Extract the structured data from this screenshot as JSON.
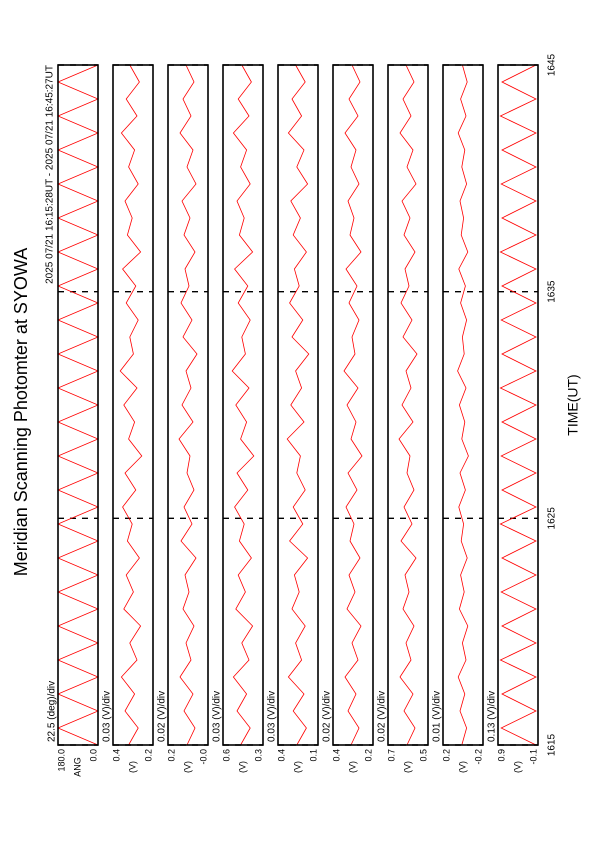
{
  "chart_data": {
    "type": "line",
    "title": "Meridian Scanning Photomter at SYOWA",
    "subtitle": "2025 07/21 16:15:28UT - 2025 07/21 16:45:27UT",
    "xlabel": "TIME(UT)",
    "xlim": [
      1615,
      1645
    ],
    "xticks": [
      1615,
      1625,
      1635,
      1645
    ],
    "grid": true,
    "x": [
      1615,
      1615.75,
      1616.5,
      1617.25,
      1618,
      1618.75,
      1619.5,
      1620.25,
      1621,
      1621.75,
      1622.5,
      1623.25,
      1624,
      1624.75,
      1625.5,
      1626.25,
      1627,
      1627.75,
      1628.5,
      1629.25,
      1630,
      1630.75,
      1631.5,
      1632.25,
      1633,
      1633.75,
      1634.5,
      1635.25,
      1636,
      1636.75,
      1637.5,
      1638.25,
      1639,
      1639.75,
      1640.5,
      1641.25,
      1642,
      1642.75,
      1643.5,
      1644.25,
      1645
    ],
    "panels": [
      {
        "label": "ANG",
        "scale": "22.5 (deg)/div",
        "ylim": [
          0,
          180
        ],
        "yticks": [
          {
            "value": 180,
            "label": "180.0"
          },
          {
            "value": 0,
            "label": "0.0"
          }
        ],
        "color": "#ff0000",
        "values": [
          0,
          180,
          0,
          180,
          0,
          180,
          0,
          180,
          0,
          180,
          0,
          180,
          0,
          180,
          0,
          180,
          0,
          180,
          0,
          180,
          0,
          180,
          0,
          180,
          0,
          180,
          0,
          180,
          0,
          180,
          0,
          180,
          0,
          180,
          0,
          180,
          0,
          180,
          0,
          180,
          0
        ]
      },
      {
        "label": "(V)",
        "scale": "0.03 (V)/div",
        "ylim": [
          0.2,
          0.4
        ],
        "yticks": [
          0.4,
          0.2
        ],
        "color": "#ff0000",
        "values": [
          0.322,
          0.274,
          0.34,
          0.292,
          0.358,
          0.28,
          0.316,
          0.262,
          0.346,
          0.298,
          0.334,
          0.268,
          0.328,
          0.304,
          0.352,
          0.286,
          0.34,
          0.256,
          0.322,
          0.292,
          0.346,
          0.28,
          0.364,
          0.298,
          0.316,
          0.274,
          0.334,
          0.286,
          0.352,
          0.262,
          0.328,
          0.304,
          0.34,
          0.274,
          0.322,
          0.292,
          0.358,
          0.28,
          0.334,
          0.268,
          0.316
        ]
      },
      {
        "label": "(V)",
        "scale": "0.02 (V)/div",
        "ylim": [
          0,
          0.2
        ],
        "yticks": [
          0.2,
          {
            "value": 0,
            "label": "-0.0"
          }
        ],
        "color": "#ff0000",
        "values": [
          0.105,
          0.065,
          0.12,
          0.075,
          0.14,
          0.085,
          0.11,
          0.07,
          0.125,
          0.095,
          0.115,
          0.06,
          0.135,
          0.08,
          0.12,
          0.07,
          0.105,
          0.09,
          0.145,
          0.075,
          0.13,
          0.085,
          0.11,
          0.055,
          0.125,
          0.08,
          0.135,
          0.095,
          0.115,
          0.065,
          0.12,
          0.09,
          0.13,
          0.06,
          0.105,
          0.075,
          0.14,
          0.085,
          0.125,
          0.07,
          0.11
        ]
      },
      {
        "label": "(V)",
        "scale": "0.03 (V)/div",
        "ylim": [
          0.3,
          0.6
        ],
        "yticks": [
          0.6,
          0.3
        ],
        "color": "#ff0000",
        "values": [
          0.468,
          0.396,
          0.495,
          0.423,
          0.522,
          0.405,
          0.459,
          0.378,
          0.504,
          0.432,
          0.486,
          0.387,
          0.477,
          0.441,
          0.513,
          0.414,
          0.495,
          0.369,
          0.468,
          0.423,
          0.504,
          0.405,
          0.531,
          0.432,
          0.459,
          0.396,
          0.486,
          0.414,
          0.513,
          0.378,
          0.477,
          0.441,
          0.495,
          0.396,
          0.468,
          0.423,
          0.522,
          0.405,
          0.486,
          0.387,
          0.459
        ]
      },
      {
        "label": "(V)",
        "scale": "0.03 (V)/div",
        "ylim": [
          0.1,
          0.4
        ],
        "yticks": [
          0.4,
          0.1
        ],
        "color": "#ff0000",
        "values": [
          0.259,
          0.187,
          0.286,
          0.205,
          0.322,
          0.223,
          0.268,
          0.196,
          0.295,
          0.241,
          0.277,
          0.178,
          0.313,
          0.214,
          0.286,
          0.196,
          0.259,
          0.232,
          0.331,
          0.205,
          0.304,
          0.223,
          0.268,
          0.169,
          0.295,
          0.214,
          0.313,
          0.241,
          0.277,
          0.187,
          0.286,
          0.232,
          0.304,
          0.178,
          0.259,
          0.205,
          0.322,
          0.223,
          0.295,
          0.196,
          0.268
        ]
      },
      {
        "label": "(V)",
        "scale": "0.02 (V)/div",
        "ylim": [
          0.2,
          0.4
        ],
        "yticks": [
          0.4,
          0.2
        ],
        "color": "#ff0000",
        "values": [
          0.31,
          0.27,
          0.325,
          0.285,
          0.34,
          0.275,
          0.305,
          0.26,
          0.33,
          0.29,
          0.32,
          0.265,
          0.315,
          0.295,
          0.335,
          0.28,
          0.325,
          0.255,
          0.31,
          0.285,
          0.33,
          0.275,
          0.345,
          0.29,
          0.305,
          0.27,
          0.32,
          0.28,
          0.335,
          0.26,
          0.315,
          0.295,
          0.325,
          0.27,
          0.31,
          0.285,
          0.34,
          0.275,
          0.32,
          0.265,
          0.305
        ]
      },
      {
        "label": "(V)",
        "scale": "0.02 (V)/div",
        "ylim": [
          0.5,
          0.7
        ],
        "yticks": [
          0.7,
          0.5
        ],
        "color": "#ff0000",
        "values": [
          0.605,
          0.565,
          0.62,
          0.575,
          0.64,
          0.585,
          0.61,
          0.57,
          0.625,
          0.595,
          0.615,
          0.56,
          0.635,
          0.58,
          0.62,
          0.57,
          0.605,
          0.59,
          0.645,
          0.575,
          0.63,
          0.585,
          0.61,
          0.555,
          0.625,
          0.58,
          0.635,
          0.595,
          0.615,
          0.565,
          0.62,
          0.59,
          0.63,
          0.56,
          0.605,
          0.575,
          0.64,
          0.585,
          0.625,
          0.57,
          0.61
        ]
      },
      {
        "label": "(V)",
        "scale": "0.01 (V)/div",
        "ylim": [
          -0.2,
          0.2
        ],
        "yticks": [
          0.2,
          -0.2
        ],
        "color": "#ff0000",
        "values": [
          0.012,
          -0.036,
          0.03,
          -0.018,
          0.048,
          -0.03,
          0.006,
          -0.048,
          0.036,
          -0.012,
          0.024,
          -0.042,
          0.018,
          -0.006,
          0.042,
          -0.024,
          0.03,
          -0.054,
          0.012,
          -0.018,
          0.036,
          -0.03,
          0.054,
          -0.012,
          0.006,
          -0.036,
          0.024,
          -0.024,
          0.042,
          -0.048,
          0.018,
          -0.006,
          0.03,
          -0.036,
          0.012,
          -0.018,
          0.048,
          -0.03,
          0.024,
          -0.042,
          0.006
        ]
      },
      {
        "label": "(V)",
        "scale": "0.13 (V)/div",
        "ylim": [
          -0.1,
          0.9
        ],
        "yticks": [
          0.9,
          -0.1
        ],
        "color": "#ff0000",
        "values": [
          -0.05,
          0.82,
          -0.05,
          0.8,
          -0.05,
          0.84,
          -0.05,
          0.8,
          -0.05,
          0.82,
          -0.05,
          0.8,
          -0.05,
          0.84,
          -0.05,
          0.8,
          -0.05,
          0.82,
          -0.05,
          0.8,
          -0.05,
          0.84,
          -0.05,
          0.8,
          -0.05,
          0.82,
          -0.05,
          0.8,
          -0.05,
          0.84,
          -0.05,
          0.8,
          -0.05,
          0.82,
          -0.05,
          0.8,
          -0.05,
          0.84,
          -0.05,
          0.8,
          -0.05
        ]
      }
    ]
  }
}
